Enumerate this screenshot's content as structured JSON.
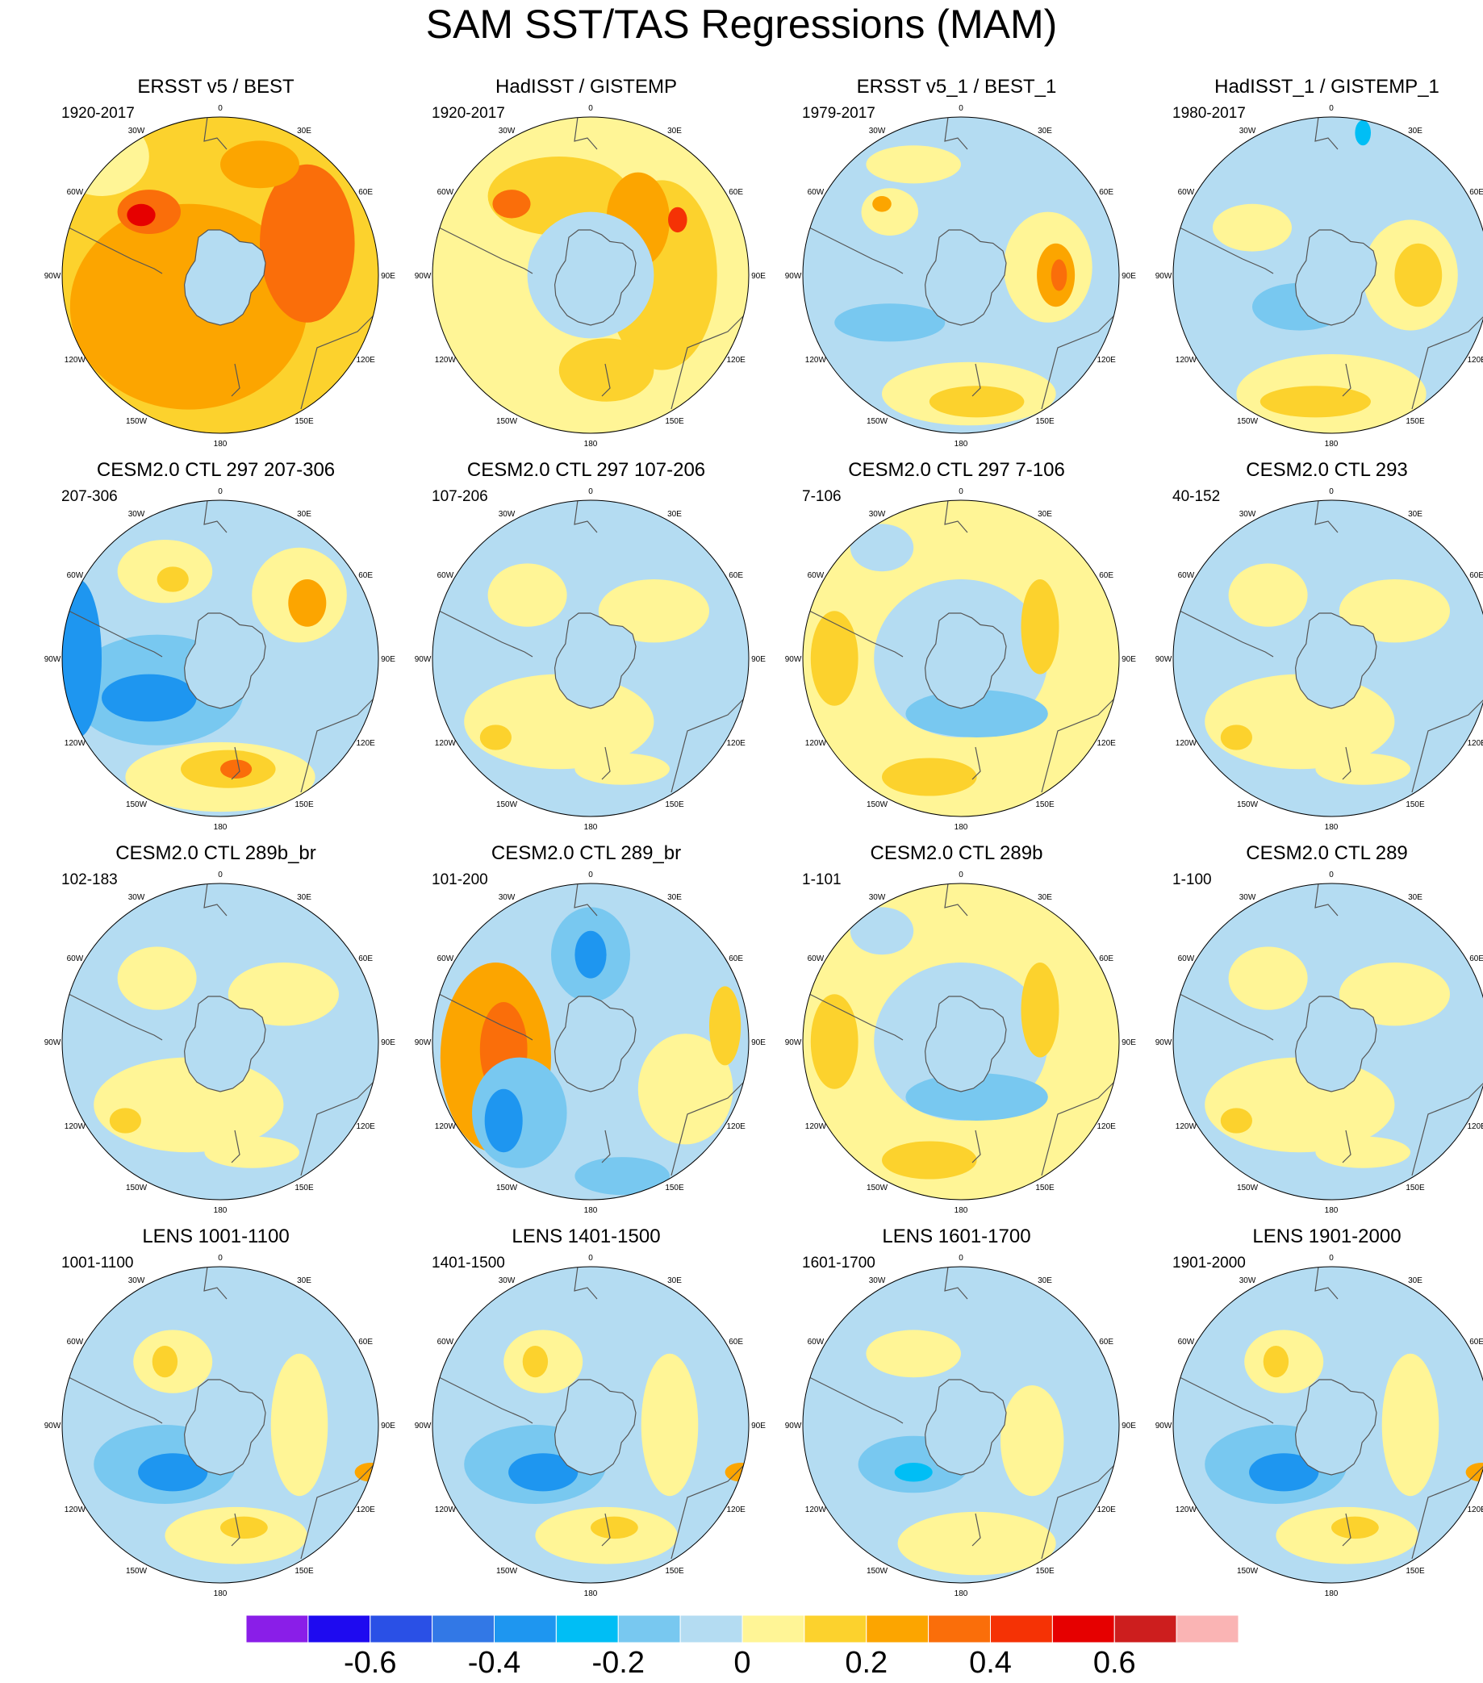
{
  "title": "SAM SST/TAS Regressions (MAM)",
  "longitude_labels": [
    "0",
    "30E",
    "60E",
    "90E",
    "120E",
    "150E",
    "180",
    "150W",
    "120W",
    "90W",
    "60W",
    "30W"
  ],
  "panels": [
    {
      "title": "ERSST v5 / BEST",
      "period": "1920-2017",
      "pattern": "warm-strong"
    },
    {
      "title": "HadISST / GISTEMP",
      "period": "1920-2017",
      "pattern": "warm"
    },
    {
      "title": "ERSST v5_1 / BEST_1",
      "period": "1979-2017",
      "pattern": "mixed-warm-east"
    },
    {
      "title": "HadISST_1 / GISTEMP_1",
      "period": "1980-2017",
      "pattern": "mixed-warm-south"
    },
    {
      "title": "CESM2.0 CTL 297 207-306",
      "period": "207-306",
      "pattern": "dipole-strong"
    },
    {
      "title": "CESM2.0 CTL 297 107-206",
      "period": "107-206",
      "pattern": "weak"
    },
    {
      "title": "CESM2.0 CTL 297 7-106",
      "period": "7-106",
      "pattern": "weak-warm"
    },
    {
      "title": "CESM2.0 CTL 293",
      "period": "40-152",
      "pattern": "weak"
    },
    {
      "title": "CESM2.0 CTL 289b_br",
      "period": "102-183",
      "pattern": "weak"
    },
    {
      "title": "CESM2.0 CTL 289_br",
      "period": "101-200",
      "pattern": "dipole-west"
    },
    {
      "title": "CESM2.0 CTL 289b",
      "period": "1-101",
      "pattern": "weak-warm"
    },
    {
      "title": "CESM2.0 CTL 289",
      "period": "1-100",
      "pattern": "weak"
    },
    {
      "title": "LENS 1001-1100",
      "period": "1001-1100",
      "pattern": "lens"
    },
    {
      "title": "LENS 1401-1500",
      "period": "1401-1500",
      "pattern": "lens"
    },
    {
      "title": "LENS 1601-1700",
      "period": "1601-1700",
      "pattern": "lens-weak"
    },
    {
      "title": "LENS 1901-2000",
      "period": "1901-2000",
      "pattern": "lens"
    }
  ],
  "colorbar": {
    "colors": [
      "#8a1ee8",
      "#1e0af0",
      "#2a50e6",
      "#3278e6",
      "#1e96f0",
      "#00bef5",
      "#78c8f0",
      "#b4dcf2",
      "#fff596",
      "#fcd22d",
      "#fca500",
      "#fa6e0a",
      "#f53205",
      "#e60000",
      "#cd1e1e",
      "#fab4b4"
    ],
    "labels": [
      "-0.6",
      "-0.4",
      "-0.2",
      "0",
      "0.2",
      "0.4",
      "0.6"
    ]
  }
}
